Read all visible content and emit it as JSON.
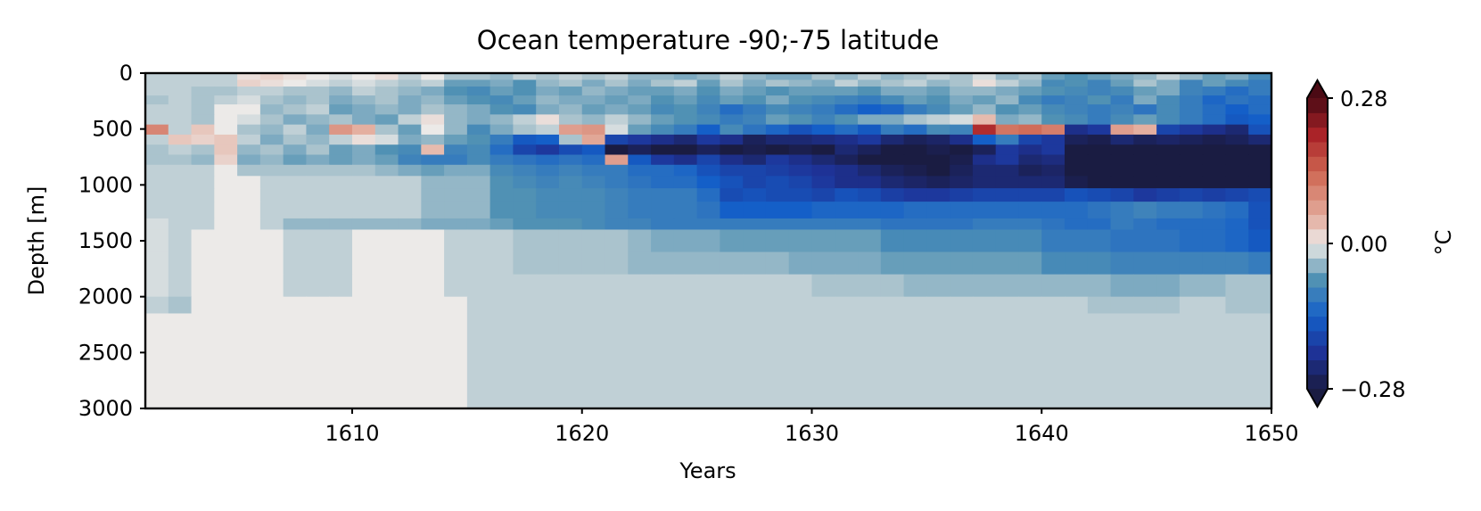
{
  "chart_data": {
    "type": "heatmap",
    "title": "Ocean temperature -90;-75 latitude",
    "xlabel": "Years",
    "ylabel": "Depth [m]",
    "xlim": [
      1601,
      1650
    ],
    "ylim": [
      3000,
      0
    ],
    "y_inverted": true,
    "x_ticks": [
      1610,
      1620,
      1630,
      1640,
      1650
    ],
    "y_ticks": [
      0,
      500,
      1000,
      1500,
      2000,
      2500,
      3000
    ],
    "colorbar": {
      "label": "°C",
      "min": -0.28,
      "max": 0.28,
      "ticks": [
        -0.28,
        0.0,
        0.28
      ],
      "tick_labels": [
        "−0.28",
        "0.00",
        "0.28"
      ],
      "extend": "both",
      "colormap": "balance"
    },
    "years": [
      1601,
      1602,
      1603,
      1604,
      1605,
      1606,
      1607,
      1608,
      1609,
      1610,
      1611,
      1612,
      1613,
      1614,
      1615,
      1616,
      1617,
      1618,
      1619,
      1620,
      1621,
      1622,
      1623,
      1624,
      1625,
      1626,
      1627,
      1628,
      1629,
      1630,
      1631,
      1632,
      1633,
      1634,
      1635,
      1636,
      1637,
      1638,
      1639,
      1640,
      1641,
      1642,
      1643,
      1644,
      1645,
      1646,
      1647,
      1648,
      1649
    ],
    "depth_bounds": [
      0,
      60,
      120,
      200,
      280,
      370,
      460,
      550,
      640,
      730,
      820,
      920,
      1030,
      1150,
      1300,
      1400,
      1600,
      1800,
      2000,
      2150,
      3000
    ],
    "temperature": [
      [
        -0.02,
        -0.02,
        -0.02,
        -0.02,
        0.01,
        0.02,
        0.01,
        0.0,
        -0.01,
        0.0,
        0.01,
        -0.02,
        0.0,
        -0.03,
        -0.03,
        -0.04,
        -0.02,
        -0.03,
        -0.02,
        -0.03,
        -0.02,
        -0.04,
        -0.04,
        -0.05,
        -0.04,
        -0.02,
        -0.04,
        -0.05,
        -0.05,
        -0.03,
        -0.04,
        -0.02,
        -0.04,
        -0.03,
        -0.02,
        -0.03,
        -0.01,
        -0.04,
        -0.03,
        -0.06,
        -0.07,
        -0.06,
        -0.05,
        -0.04,
        -0.02,
        -0.04,
        -0.06,
        -0.05,
        -0.08
      ],
      [
        -0.02,
        -0.02,
        -0.02,
        -0.02,
        0.02,
        0.01,
        0.0,
        -0.01,
        -0.02,
        -0.01,
        -0.02,
        -0.03,
        -0.02,
        -0.06,
        -0.06,
        -0.05,
        -0.07,
        -0.04,
        -0.03,
        -0.05,
        -0.03,
        -0.05,
        -0.03,
        -0.02,
        -0.06,
        -0.03,
        -0.05,
        -0.03,
        -0.04,
        -0.05,
        -0.02,
        -0.04,
        -0.03,
        -0.02,
        -0.04,
        -0.03,
        0.01,
        -0.02,
        -0.04,
        -0.08,
        -0.07,
        -0.09,
        -0.06,
        -0.03,
        -0.05,
        -0.09,
        -0.06,
        -0.08,
        -0.1
      ],
      [
        -0.02,
        -0.02,
        -0.03,
        -0.03,
        -0.02,
        -0.02,
        -0.03,
        -0.03,
        -0.04,
        -0.02,
        -0.03,
        -0.04,
        -0.05,
        -0.07,
        -0.08,
        -0.06,
        -0.07,
        -0.05,
        -0.06,
        -0.04,
        -0.05,
        -0.06,
        -0.06,
        -0.05,
        -0.07,
        -0.05,
        -0.06,
        -0.07,
        -0.06,
        -0.06,
        -0.06,
        -0.07,
        -0.05,
        -0.05,
        -0.06,
        -0.04,
        -0.04,
        -0.05,
        -0.06,
        -0.07,
        -0.08,
        -0.09,
        -0.08,
        -0.06,
        -0.05,
        -0.09,
        -0.1,
        -0.12,
        -0.1
      ],
      [
        -0.03,
        -0.02,
        -0.03,
        -0.02,
        -0.01,
        -0.03,
        -0.04,
        -0.03,
        -0.05,
        -0.04,
        -0.03,
        -0.05,
        -0.04,
        -0.06,
        -0.07,
        -0.08,
        -0.06,
        -0.04,
        -0.05,
        -0.05,
        -0.06,
        -0.05,
        -0.07,
        -0.06,
        -0.08,
        -0.06,
        -0.07,
        -0.05,
        -0.07,
        -0.08,
        -0.09,
        -0.1,
        -0.08,
        -0.06,
        -0.07,
        -0.05,
        -0.06,
        -0.04,
        -0.08,
        -0.1,
        -0.09,
        -0.07,
        -0.1,
        -0.05,
        -0.08,
        -0.1,
        -0.13,
        -0.11,
        -0.12
      ],
      [
        -0.02,
        -0.02,
        -0.03,
        0.0,
        0.0,
        -0.04,
        -0.03,
        -0.02,
        -0.06,
        -0.05,
        -0.04,
        -0.05,
        -0.03,
        -0.04,
        -0.05,
        -0.07,
        -0.08,
        -0.05,
        -0.04,
        -0.06,
        -0.05,
        -0.06,
        -0.08,
        -0.07,
        -0.09,
        -0.12,
        -0.1,
        -0.08,
        -0.09,
        -0.1,
        -0.12,
        -0.14,
        -0.13,
        -0.1,
        -0.08,
        -0.06,
        -0.04,
        -0.07,
        -0.06,
        -0.08,
        -0.09,
        -0.1,
        -0.09,
        -0.11,
        -0.08,
        -0.1,
        -0.12,
        -0.14,
        -0.12
      ],
      [
        -0.02,
        -0.02,
        -0.03,
        0.0,
        -0.01,
        -0.03,
        -0.05,
        -0.04,
        -0.03,
        -0.05,
        -0.06,
        -0.02,
        0.01,
        -0.04,
        -0.05,
        -0.04,
        -0.02,
        0.01,
        -0.03,
        -0.04,
        -0.02,
        -0.04,
        -0.06,
        -0.07,
        -0.08,
        -0.1,
        -0.09,
        -0.06,
        -0.07,
        -0.09,
        -0.07,
        -0.05,
        -0.05,
        -0.03,
        -0.02,
        -0.01,
        0.04,
        -0.05,
        -0.04,
        -0.07,
        -0.08,
        -0.1,
        -0.08,
        -0.06,
        -0.08,
        -0.1,
        -0.12,
        -0.15,
        -0.14
      ],
      [
        0.1,
        -0.02,
        0.03,
        0.0,
        -0.03,
        -0.04,
        -0.02,
        -0.05,
        0.08,
        0.05,
        -0.03,
        -0.06,
        0.0,
        -0.04,
        -0.08,
        -0.05,
        -0.03,
        -0.02,
        0.07,
        0.08,
        -0.01,
        -0.06,
        -0.08,
        -0.1,
        -0.14,
        -0.08,
        -0.11,
        -0.13,
        -0.16,
        -0.14,
        -0.12,
        -0.15,
        -0.1,
        -0.12,
        -0.08,
        -0.09,
        0.2,
        0.12,
        0.13,
        0.11,
        -0.22,
        -0.2,
        0.07,
        0.05,
        -0.18,
        -0.2,
        -0.22,
        -0.24,
        -0.16
      ],
      [
        -0.02,
        0.03,
        0.02,
        0.03,
        -0.02,
        -0.05,
        -0.03,
        -0.04,
        -0.02,
        0.01,
        -0.01,
        -0.05,
        -0.04,
        -0.06,
        -0.07,
        -0.1,
        -0.15,
        -0.14,
        -0.03,
        0.06,
        -0.18,
        -0.2,
        -0.22,
        -0.24,
        -0.2,
        -0.22,
        -0.26,
        -0.24,
        -0.24,
        -0.23,
        -0.22,
        -0.2,
        -0.24,
        -0.26,
        -0.25,
        -0.22,
        -0.14,
        -0.1,
        -0.18,
        -0.2,
        -0.26,
        -0.27,
        -0.24,
        -0.26,
        -0.25,
        -0.26,
        -0.27,
        -0.26,
        -0.24
      ],
      [
        -0.03,
        -0.02,
        -0.03,
        0.03,
        -0.04,
        -0.03,
        -0.05,
        -0.03,
        -0.06,
        -0.05,
        -0.07,
        -0.08,
        0.04,
        -0.09,
        -0.08,
        -0.12,
        -0.18,
        -0.2,
        -0.17,
        -0.15,
        -0.28,
        -0.26,
        -0.28,
        -0.28,
        -0.26,
        -0.28,
        -0.27,
        -0.28,
        -0.27,
        -0.28,
        -0.24,
        -0.26,
        -0.28,
        -0.28,
        -0.27,
        -0.28,
        -0.26,
        -0.2,
        -0.22,
        -0.2,
        -0.28,
        -0.28,
        -0.28,
        -0.28,
        -0.28,
        -0.28,
        -0.28,
        -0.28,
        -0.28
      ],
      [
        -0.03,
        -0.03,
        -0.04,
        0.02,
        -0.05,
        -0.04,
        -0.06,
        -0.05,
        -0.06,
        -0.05,
        -0.06,
        -0.09,
        -0.1,
        -0.1,
        -0.08,
        -0.1,
        -0.11,
        -0.12,
        -0.11,
        -0.12,
        0.07,
        -0.15,
        -0.2,
        -0.22,
        -0.18,
        -0.22,
        -0.24,
        -0.2,
        -0.22,
        -0.24,
        -0.26,
        -0.28,
        -0.28,
        -0.28,
        -0.28,
        -0.27,
        -0.22,
        -0.2,
        -0.24,
        -0.23,
        -0.28,
        -0.28,
        -0.28,
        -0.28,
        -0.28,
        -0.28,
        -0.28,
        -0.28,
        -0.28
      ],
      [
        -0.02,
        -0.02,
        -0.02,
        0.0,
        -0.03,
        -0.03,
        -0.03,
        -0.03,
        -0.03,
        -0.03,
        -0.04,
        -0.05,
        -0.06,
        -0.05,
        -0.05,
        -0.08,
        -0.09,
        -0.1,
        -0.09,
        -0.1,
        -0.1,
        -0.12,
        -0.12,
        -0.13,
        -0.16,
        -0.18,
        -0.18,
        -0.19,
        -0.2,
        -0.21,
        -0.22,
        -0.24,
        -0.26,
        -0.27,
        -0.28,
        -0.26,
        -0.24,
        -0.24,
        -0.26,
        -0.25,
        -0.28,
        -0.28,
        -0.28,
        -0.28,
        -0.28,
        -0.28,
        -0.28,
        -0.28,
        -0.28
      ],
      [
        -0.02,
        -0.02,
        -0.02,
        0.0,
        0.0,
        -0.02,
        -0.02,
        -0.02,
        -0.02,
        -0.02,
        -0.02,
        -0.02,
        -0.04,
        -0.04,
        -0.04,
        -0.07,
        -0.08,
        -0.09,
        -0.08,
        -0.09,
        -0.1,
        -0.11,
        -0.12,
        -0.12,
        -0.14,
        -0.16,
        -0.18,
        -0.17,
        -0.18,
        -0.2,
        -0.22,
        -0.22,
        -0.24,
        -0.25,
        -0.26,
        -0.25,
        -0.24,
        -0.24,
        -0.24,
        -0.24,
        -0.27,
        -0.28,
        -0.28,
        -0.28,
        -0.28,
        -0.28,
        -0.28,
        -0.28,
        -0.28
      ],
      [
        -0.02,
        -0.02,
        -0.02,
        0.0,
        0.0,
        -0.02,
        -0.02,
        -0.02,
        -0.02,
        -0.02,
        -0.02,
        -0.02,
        -0.04,
        -0.04,
        -0.04,
        -0.07,
        -0.07,
        -0.08,
        -0.08,
        -0.08,
        -0.09,
        -0.1,
        -0.1,
        -0.1,
        -0.12,
        -0.17,
        -0.16,
        -0.17,
        -0.17,
        -0.18,
        -0.16,
        -0.17,
        -0.19,
        -0.2,
        -0.2,
        -0.19,
        -0.18,
        -0.18,
        -0.18,
        -0.18,
        -0.16,
        -0.17,
        -0.18,
        -0.2,
        -0.19,
        -0.18,
        -0.19,
        -0.18,
        -0.17
      ],
      [
        -0.02,
        -0.02,
        -0.02,
        0.0,
        0.0,
        -0.02,
        -0.02,
        -0.02,
        -0.02,
        -0.02,
        -0.02,
        -0.02,
        -0.04,
        -0.04,
        -0.04,
        -0.07,
        -0.07,
        -0.08,
        -0.08,
        -0.08,
        -0.09,
        -0.1,
        -0.1,
        -0.1,
        -0.11,
        -0.14,
        -0.14,
        -0.14,
        -0.14,
        -0.13,
        -0.13,
        -0.13,
        -0.13,
        -0.12,
        -0.12,
        -0.12,
        -0.12,
        -0.12,
        -0.12,
        -0.12,
        -0.12,
        -0.11,
        -0.1,
        -0.09,
        -0.1,
        -0.1,
        -0.11,
        -0.12,
        -0.16
      ],
      [
        -0.01,
        -0.02,
        -0.02,
        0.0,
        0.0,
        -0.02,
        -0.04,
        -0.04,
        -0.04,
        -0.04,
        -0.04,
        -0.04,
        -0.05,
        -0.05,
        -0.05,
        -0.06,
        -0.07,
        -0.07,
        -0.07,
        -0.08,
        -0.09,
        -0.09,
        -0.1,
        -0.1,
        -0.1,
        -0.1,
        -0.1,
        -0.1,
        -0.1,
        -0.1,
        -0.1,
        -0.1,
        -0.11,
        -0.11,
        -0.11,
        -0.11,
        -0.1,
        -0.1,
        -0.1,
        -0.11,
        -0.12,
        -0.12,
        -0.1,
        -0.11,
        -0.12,
        -0.12,
        -0.12,
        -0.13,
        -0.16
      ],
      [
        -0.01,
        -0.02,
        0.0,
        0.0,
        0.0,
        0.0,
        -0.02,
        -0.02,
        -0.02,
        0.0,
        0.0,
        0.0,
        0.0,
        -0.02,
        -0.02,
        -0.02,
        -0.03,
        -0.03,
        -0.03,
        -0.03,
        -0.03,
        -0.04,
        -0.05,
        -0.05,
        -0.05,
        -0.06,
        -0.06,
        -0.06,
        -0.06,
        -0.06,
        -0.06,
        -0.06,
        -0.08,
        -0.08,
        -0.08,
        -0.08,
        -0.08,
        -0.08,
        -0.08,
        -0.1,
        -0.1,
        -0.1,
        -0.11,
        -0.11,
        -0.11,
        -0.12,
        -0.12,
        -0.13,
        -0.15
      ],
      [
        -0.01,
        -0.02,
        0.0,
        0.0,
        0.0,
        0.0,
        -0.02,
        -0.02,
        -0.02,
        0.0,
        0.0,
        0.0,
        0.0,
        -0.02,
        -0.02,
        -0.02,
        -0.03,
        -0.03,
        -0.03,
        -0.03,
        -0.03,
        -0.04,
        -0.04,
        -0.04,
        -0.04,
        -0.04,
        -0.04,
        -0.04,
        -0.05,
        -0.05,
        -0.05,
        -0.05,
        -0.06,
        -0.06,
        -0.06,
        -0.06,
        -0.06,
        -0.06,
        -0.06,
        -0.08,
        -0.08,
        -0.08,
        -0.09,
        -0.09,
        -0.09,
        -0.09,
        -0.09,
        -0.09,
        -0.1
      ],
      [
        -0.01,
        -0.02,
        0.0,
        0.0,
        0.0,
        0.0,
        -0.02,
        -0.02,
        -0.02,
        0.0,
        0.0,
        0.0,
        0.0,
        -0.02,
        -0.02,
        -0.02,
        -0.02,
        -0.02,
        -0.02,
        -0.02,
        -0.02,
        -0.02,
        -0.02,
        -0.02,
        -0.02,
        -0.02,
        -0.02,
        -0.02,
        -0.02,
        -0.03,
        -0.03,
        -0.03,
        -0.03,
        -0.04,
        -0.04,
        -0.04,
        -0.04,
        -0.04,
        -0.04,
        -0.04,
        -0.04,
        -0.04,
        -0.05,
        -0.05,
        -0.05,
        -0.04,
        -0.04,
        -0.03,
        -0.03
      ],
      [
        -0.02,
        -0.03,
        0.0,
        0.0,
        0.0,
        0.0,
        0.0,
        0.0,
        0.0,
        0.0,
        0.0,
        0.0,
        0.0,
        0.0,
        -0.02,
        -0.02,
        -0.02,
        -0.02,
        -0.02,
        -0.02,
        -0.02,
        -0.02,
        -0.02,
        -0.02,
        -0.02,
        -0.02,
        -0.02,
        -0.02,
        -0.02,
        -0.02,
        -0.02,
        -0.02,
        -0.02,
        -0.02,
        -0.02,
        -0.02,
        -0.02,
        -0.02,
        -0.02,
        -0.02,
        -0.02,
        -0.03,
        -0.03,
        -0.03,
        -0.03,
        -0.02,
        -0.02,
        -0.03,
        -0.03
      ],
      [
        0.0,
        0.0,
        0.0,
        0.0,
        0.0,
        0.0,
        0.0,
        0.0,
        0.0,
        0.0,
        0.0,
        0.0,
        0.0,
        0.0,
        -0.02,
        -0.02,
        -0.02,
        -0.02,
        -0.02,
        -0.02,
        -0.02,
        -0.02,
        -0.02,
        -0.02,
        -0.02,
        -0.02,
        -0.02,
        -0.02,
        -0.02,
        -0.02,
        -0.02,
        -0.02,
        -0.02,
        -0.02,
        -0.02,
        -0.02,
        -0.02,
        -0.02,
        -0.02,
        -0.02,
        -0.02,
        -0.02,
        -0.02,
        -0.02,
        -0.02,
        -0.02,
        -0.02,
        -0.02,
        -0.02
      ]
    ]
  }
}
